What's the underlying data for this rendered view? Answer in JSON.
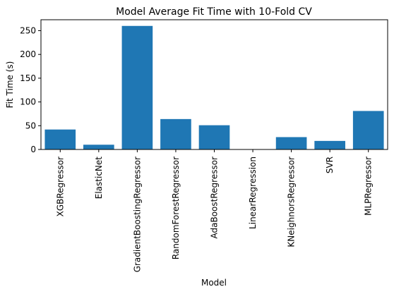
{
  "chart_data": {
    "type": "bar",
    "title": "Model Average Fit Time with 10-Fold CV",
    "xlabel": "Model",
    "ylabel": "Fit Time (s)",
    "categories": [
      "XGBRegressor",
      "ElasticNet",
      "GradientBoostingRegressor",
      "RandomForestRegressor",
      "AdaBoostRegressor",
      "LinearRegression",
      "KNeighnorsRegressor",
      "SVR",
      "MLPRegressor"
    ],
    "values": [
      42,
      10,
      260,
      64,
      51,
      0.3,
      26,
      18,
      81
    ],
    "ylim": [
      0,
      273
    ],
    "yticks": [
      0,
      50,
      100,
      150,
      200,
      250
    ],
    "bar_color": "#1f77b4",
    "grid": false,
    "legend": "none"
  }
}
